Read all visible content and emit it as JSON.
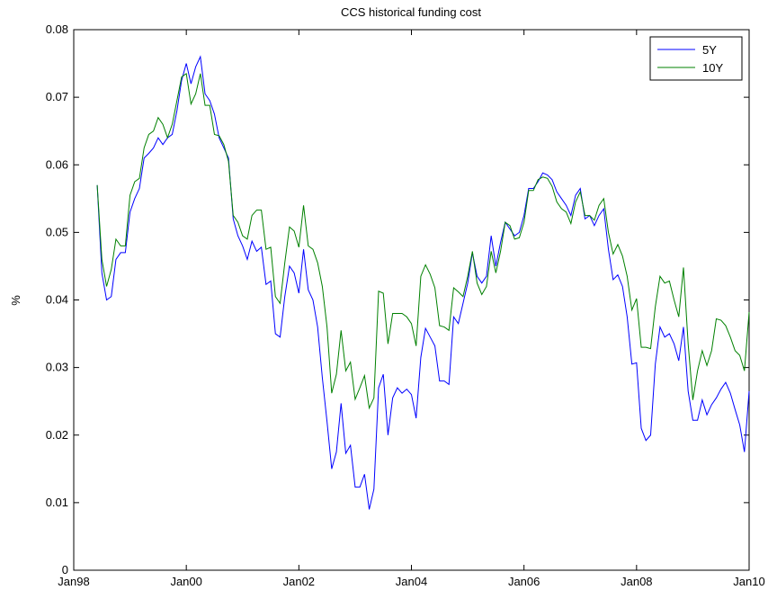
{
  "chart_data": {
    "type": "line",
    "title": "CCS historical funding cost",
    "y_label": "%",
    "x": [
      "1998-06",
      "1998-07",
      "1998-08",
      "1998-09",
      "1998-10",
      "1998-11",
      "1998-12",
      "1999-01",
      "1999-02",
      "1999-03",
      "1999-04",
      "1999-05",
      "1999-06",
      "1999-07",
      "1999-08",
      "1999-09",
      "1999-10",
      "1999-11",
      "1999-12",
      "2000-01",
      "2000-02",
      "2000-03",
      "2000-04",
      "2000-05",
      "2000-06",
      "2000-07",
      "2000-08",
      "2000-09",
      "2000-10",
      "2000-11",
      "2000-12",
      "2001-01",
      "2001-02",
      "2001-03",
      "2001-04",
      "2001-05",
      "2001-06",
      "2001-07",
      "2001-08",
      "2001-09",
      "2001-10",
      "2001-11",
      "2001-12",
      "2002-01",
      "2002-02",
      "2002-03",
      "2002-04",
      "2002-05",
      "2002-06",
      "2002-07",
      "2002-08",
      "2002-09",
      "2002-10",
      "2002-11",
      "2002-12",
      "2003-01",
      "2003-02",
      "2003-03",
      "2003-04",
      "2003-05",
      "2003-06",
      "2003-07",
      "2003-08",
      "2003-09",
      "2003-10",
      "2003-11",
      "2003-12",
      "2004-01",
      "2004-02",
      "2004-03",
      "2004-04",
      "2004-05",
      "2004-06",
      "2004-07",
      "2004-08",
      "2004-09",
      "2004-10",
      "2004-11",
      "2004-12",
      "2005-01",
      "2005-02",
      "2005-03",
      "2005-04",
      "2005-05",
      "2005-06",
      "2005-07",
      "2005-08",
      "2005-09",
      "2005-10",
      "2005-11",
      "2005-12",
      "2006-01",
      "2006-02",
      "2006-03",
      "2006-04",
      "2006-05",
      "2006-06",
      "2006-07",
      "2006-08",
      "2006-09",
      "2006-10",
      "2006-11",
      "2006-12",
      "2007-01",
      "2007-02",
      "2007-03",
      "2007-04",
      "2007-05",
      "2007-06",
      "2007-07",
      "2007-08",
      "2007-09",
      "2007-10",
      "2007-11",
      "2007-12",
      "2008-01",
      "2008-02",
      "2008-03",
      "2008-04",
      "2008-05",
      "2008-06",
      "2008-07",
      "2008-08",
      "2008-09",
      "2008-10",
      "2008-11",
      "2008-12",
      "2009-01",
      "2009-02",
      "2009-03",
      "2009-04",
      "2009-05",
      "2009-06",
      "2009-07",
      "2009-08",
      "2009-09",
      "2009-10",
      "2009-11",
      "2009-12",
      "2010-01"
    ],
    "series": [
      {
        "name": "5Y",
        "color": "#0000ff",
        "values": [
          0.057,
          0.044,
          0.04,
          0.0405,
          0.046,
          0.047,
          0.047,
          0.053,
          0.055,
          0.0565,
          0.061,
          0.0617,
          0.0625,
          0.064,
          0.063,
          0.064,
          0.0645,
          0.068,
          0.0725,
          0.075,
          0.072,
          0.0745,
          0.076,
          0.0705,
          0.0695,
          0.0675,
          0.064,
          0.0625,
          0.061,
          0.052,
          0.0495,
          0.048,
          0.046,
          0.0487,
          0.0472,
          0.0478,
          0.0423,
          0.0428,
          0.035,
          0.0345,
          0.0405,
          0.045,
          0.044,
          0.041,
          0.0475,
          0.0415,
          0.04,
          0.036,
          0.0285,
          0.022,
          0.015,
          0.0175,
          0.0247,
          0.0173,
          0.0185,
          0.0123,
          0.0123,
          0.0142,
          0.009,
          0.012,
          0.027,
          0.029,
          0.02,
          0.0255,
          0.027,
          0.0262,
          0.0268,
          0.026,
          0.0225,
          0.0315,
          0.0358,
          0.0345,
          0.0332,
          0.028,
          0.028,
          0.0275,
          0.0375,
          0.0365,
          0.0395,
          0.0425,
          0.047,
          0.0435,
          0.0425,
          0.0435,
          0.0495,
          0.045,
          0.0485,
          0.0515,
          0.0505,
          0.0495,
          0.05,
          0.0525,
          0.0565,
          0.0565,
          0.0575,
          0.0588,
          0.0585,
          0.0578,
          0.056,
          0.055,
          0.054,
          0.0525,
          0.0555,
          0.0565,
          0.052,
          0.0525,
          0.051,
          0.0525,
          0.0535,
          0.0475,
          0.043,
          0.0437,
          0.042,
          0.0375,
          0.0305,
          0.0307,
          0.021,
          0.0192,
          0.02,
          0.0305,
          0.036,
          0.0345,
          0.035,
          0.0335,
          0.031,
          0.036,
          0.0265,
          0.0222,
          0.0222,
          0.0252,
          0.023,
          0.0245,
          0.0255,
          0.0268,
          0.0278,
          0.0262,
          0.0238,
          0.0215,
          0.0175,
          0.0265
        ]
      },
      {
        "name": "10Y",
        "color": "#008000",
        "values": [
          0.057,
          0.046,
          0.042,
          0.0445,
          0.049,
          0.048,
          0.048,
          0.0555,
          0.0575,
          0.058,
          0.0625,
          0.0645,
          0.065,
          0.067,
          0.066,
          0.064,
          0.066,
          0.0695,
          0.073,
          0.0735,
          0.069,
          0.0705,
          0.0735,
          0.0688,
          0.0688,
          0.0645,
          0.0643,
          0.063,
          0.0605,
          0.0525,
          0.0515,
          0.0495,
          0.049,
          0.0525,
          0.0533,
          0.0533,
          0.0475,
          0.0478,
          0.0405,
          0.0395,
          0.0455,
          0.0508,
          0.0502,
          0.0478,
          0.054,
          0.048,
          0.0475,
          0.0455,
          0.042,
          0.036,
          0.0262,
          0.029,
          0.0355,
          0.0295,
          0.0308,
          0.0253,
          0.027,
          0.0288,
          0.024,
          0.0255,
          0.0413,
          0.041,
          0.0335,
          0.038,
          0.038,
          0.038,
          0.0375,
          0.0365,
          0.0332,
          0.0435,
          0.0452,
          0.0438,
          0.0418,
          0.0362,
          0.036,
          0.0355,
          0.0418,
          0.0412,
          0.0405,
          0.0435,
          0.0472,
          0.0425,
          0.0408,
          0.042,
          0.0472,
          0.044,
          0.0472,
          0.0515,
          0.051,
          0.049,
          0.0492,
          0.0515,
          0.0562,
          0.0562,
          0.0578,
          0.0582,
          0.058,
          0.0568,
          0.0545,
          0.0535,
          0.053,
          0.0513,
          0.0545,
          0.056,
          0.0525,
          0.0525,
          0.0518,
          0.054,
          0.055,
          0.05,
          0.0468,
          0.0482,
          0.0465,
          0.0435,
          0.0385,
          0.0402,
          0.033,
          0.033,
          0.0328,
          0.039,
          0.0435,
          0.0425,
          0.0428,
          0.04,
          0.0375,
          0.0448,
          0.0335,
          0.0252,
          0.0295,
          0.0325,
          0.0303,
          0.0325,
          0.0372,
          0.037,
          0.0362,
          0.0345,
          0.0325,
          0.0318,
          0.0295,
          0.0382
        ]
      }
    ],
    "xlim": [
      "1998-01",
      "2010-01"
    ],
    "xticks": [
      {
        "value": "1998-01",
        "label": "Jan98"
      },
      {
        "value": "2000-01",
        "label": "Jan00"
      },
      {
        "value": "2002-01",
        "label": "Jan02"
      },
      {
        "value": "2004-01",
        "label": "Jan04"
      },
      {
        "value": "2006-01",
        "label": "Jan06"
      },
      {
        "value": "2008-01",
        "label": "Jan08"
      },
      {
        "value": "2010-01",
        "label": "Jan10"
      }
    ],
    "ylim": [
      0,
      0.08
    ],
    "yticks": [
      0,
      0.01,
      0.02,
      0.03,
      0.04,
      0.05,
      0.06,
      0.07,
      0.08
    ],
    "legend": "upper right"
  }
}
